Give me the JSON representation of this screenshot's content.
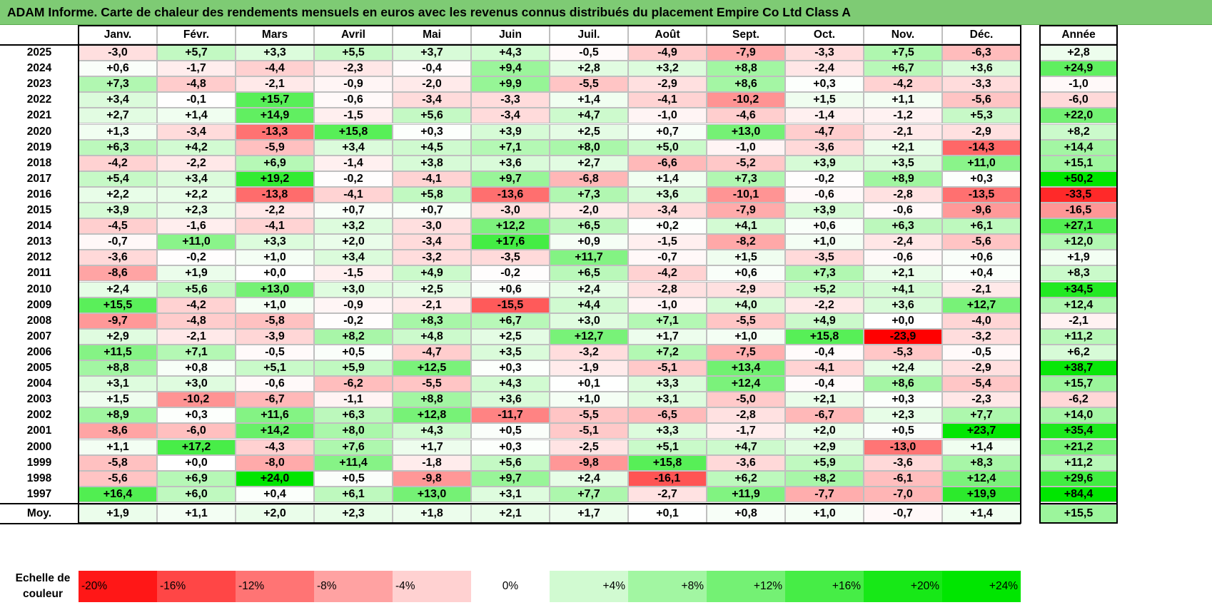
{
  "title": "ADAM Informe. Carte de chaleur des rendements mensuels en euros avec les revenus connus distribués du placement Empire Co Ltd Class A",
  "chart_data": {
    "type": "heatmap",
    "months": [
      "Janv.",
      "Févr.",
      "Mars",
      "Avril",
      "Mai",
      "Juin",
      "Juil.",
      "Août",
      "Sept.",
      "Oct.",
      "Nov.",
      "Déc."
    ],
    "year_header": "Année",
    "average_label": "Moy.",
    "rows": [
      {
        "year": "2025",
        "values": [
          "-3,0",
          "+5,7",
          "+3,3",
          "+5,5",
          "+3,7",
          "+4,3",
          "-0,5",
          "-4,9",
          "-7,9",
          "-3,3",
          "+7,5",
          "-6,3"
        ],
        "annual": "+2,8"
      },
      {
        "year": "2024",
        "values": [
          "+0,6",
          "-1,7",
          "-4,4",
          "-2,3",
          "-0,4",
          "+9,4",
          "+2,8",
          "+3,2",
          "+8,8",
          "-2,4",
          "+6,7",
          "+3,6"
        ],
        "annual": "+24,9"
      },
      {
        "year": "2023",
        "values": [
          "+7,3",
          "-4,8",
          "-2,1",
          "-0,9",
          "-2,0",
          "+9,9",
          "-5,5",
          "-2,9",
          "+8,6",
          "+0,3",
          "-4,2",
          "-3,3"
        ],
        "annual": "-1,0"
      },
      {
        "year": "2022",
        "values": [
          "+3,4",
          "-0,1",
          "+15,7",
          "-0,6",
          "-3,4",
          "-3,3",
          "+1,4",
          "-4,1",
          "-10,2",
          "+1,5",
          "+1,1",
          "-5,6"
        ],
        "annual": "-6,0"
      },
      {
        "year": "2021",
        "values": [
          "+2,7",
          "+1,4",
          "+14,9",
          "-1,5",
          "+5,6",
          "-3,4",
          "+4,7",
          "-1,0",
          "-4,6",
          "-1,4",
          "-1,2",
          "+5,3"
        ],
        "annual": "+22,0"
      },
      {
        "year": "2020",
        "values": [
          "+1,3",
          "-3,4",
          "-13,3",
          "+15,8",
          "+0,3",
          "+3,9",
          "+2,5",
          "+0,7",
          "+13,0",
          "-4,7",
          "-2,1",
          "-2,9"
        ],
        "annual": "+8,2"
      },
      {
        "year": "2019",
        "values": [
          "+6,3",
          "+4,2",
          "-5,9",
          "+3,4",
          "+4,5",
          "+7,1",
          "+8,0",
          "+5,0",
          "-1,0",
          "-3,6",
          "+2,1",
          "-14,3"
        ],
        "annual": "+14,4"
      },
      {
        "year": "2018",
        "values": [
          "-4,2",
          "-2,2",
          "+6,9",
          "-1,4",
          "+3,8",
          "+3,6",
          "+2,7",
          "-6,6",
          "-5,2",
          "+3,9",
          "+3,5",
          "+11,0"
        ],
        "annual": "+15,1"
      },
      {
        "year": "2017",
        "values": [
          "+5,4",
          "+3,4",
          "+19,2",
          "-0,2",
          "-4,1",
          "+9,7",
          "-6,8",
          "+1,4",
          "+7,3",
          "-0,2",
          "+8,9",
          "+0,3"
        ],
        "annual": "+50,2"
      },
      {
        "year": "2016",
        "values": [
          "+2,2",
          "+2,2",
          "-13,8",
          "-4,1",
          "+5,8",
          "-13,6",
          "+7,3",
          "+3,6",
          "-10,1",
          "-0,6",
          "-2,8",
          "-13,5"
        ],
        "annual": "-33,5"
      },
      {
        "year": "2015",
        "values": [
          "+3,9",
          "+2,3",
          "-2,2",
          "+0,7",
          "+0,7",
          "-3,0",
          "-2,0",
          "-3,4",
          "-7,9",
          "+3,9",
          "-0,6",
          "-9,6"
        ],
        "annual": "-16,5"
      },
      {
        "year": "2014",
        "values": [
          "-4,5",
          "-1,6",
          "-4,1",
          "+3,2",
          "-3,0",
          "+12,2",
          "+6,5",
          "+0,2",
          "+4,1",
          "+0,6",
          "+6,3",
          "+6,1"
        ],
        "annual": "+27,1"
      },
      {
        "year": "2013",
        "values": [
          "-0,7",
          "+11,0",
          "+3,3",
          "+2,0",
          "-3,4",
          "+17,6",
          "+0,9",
          "-1,5",
          "-8,2",
          "+1,0",
          "-2,4",
          "-5,6"
        ],
        "annual": "+12,0"
      },
      {
        "year": "2012",
        "values": [
          "-3,6",
          "-0,2",
          "+1,0",
          "+3,4",
          "-3,2",
          "-3,5",
          "+11,7",
          "-0,7",
          "+1,5",
          "-3,5",
          "-0,6",
          "+0,6"
        ],
        "annual": "+1,9"
      },
      {
        "year": "2011",
        "values": [
          "-8,6",
          "+1,9",
          "+0,0",
          "-1,5",
          "+4,9",
          "-0,2",
          "+6,5",
          "-4,2",
          "+0,6",
          "+7,3",
          "+2,1",
          "+0,4"
        ],
        "annual": "+8,3"
      },
      {
        "year": "2010",
        "values": [
          "+2,4",
          "+5,6",
          "+13,0",
          "+3,0",
          "+2,5",
          "+0,6",
          "+2,4",
          "-2,8",
          "-2,9",
          "+5,2",
          "+4,1",
          "-2,1"
        ],
        "annual": "+34,5"
      },
      {
        "year": "2009",
        "values": [
          "+15,5",
          "-4,2",
          "+1,0",
          "-0,9",
          "-2,1",
          "-15,5",
          "+4,4",
          "-1,0",
          "+4,0",
          "-2,2",
          "+3,6",
          "+12,7"
        ],
        "annual": "+12,4"
      },
      {
        "year": "2008",
        "values": [
          "-9,7",
          "-4,8",
          "-5,8",
          "-0,2",
          "+8,3",
          "+6,7",
          "+3,0",
          "+7,1",
          "-5,5",
          "+4,9",
          "+0,0",
          "-4,0"
        ],
        "annual": "-2,1"
      },
      {
        "year": "2007",
        "values": [
          "+2,9",
          "-2,1",
          "-3,9",
          "+8,2",
          "+4,8",
          "+2,5",
          "+12,7",
          "+1,7",
          "+1,0",
          "+15,8",
          "-23,9",
          "-3,2"
        ],
        "annual": "+11,2"
      },
      {
        "year": "2006",
        "values": [
          "+11,5",
          "+7,1",
          "-0,5",
          "+0,5",
          "-4,7",
          "+3,5",
          "-3,2",
          "+7,2",
          "-7,5",
          "-0,4",
          "-5,3",
          "-0,5"
        ],
        "annual": "+6,2"
      },
      {
        "year": "2005",
        "values": [
          "+8,8",
          "+0,8",
          "+5,1",
          "+5,9",
          "+12,5",
          "+0,3",
          "-1,9",
          "-5,1",
          "+13,4",
          "-4,1",
          "+2,4",
          "-2,9"
        ],
        "annual": "+38,7"
      },
      {
        "year": "2004",
        "values": [
          "+3,1",
          "+3,0",
          "-0,6",
          "-6,2",
          "-5,5",
          "+4,3",
          "+0,1",
          "+3,3",
          "+12,4",
          "-0,4",
          "+8,6",
          "-5,4"
        ],
        "annual": "+15,7"
      },
      {
        "year": "2003",
        "values": [
          "+1,5",
          "-10,2",
          "-6,7",
          "-1,1",
          "+8,8",
          "+3,6",
          "+1,0",
          "+3,1",
          "-5,0",
          "+2,1",
          "+0,3",
          "-2,3"
        ],
        "annual": "-6,2"
      },
      {
        "year": "2002",
        "values": [
          "+8,9",
          "+0,3",
          "+11,6",
          "+6,3",
          "+12,8",
          "-11,7",
          "-5,5",
          "-6,5",
          "-2,8",
          "-6,7",
          "+2,3",
          "+7,7"
        ],
        "annual": "+14,0"
      },
      {
        "year": "2001",
        "values": [
          "-8,6",
          "-6,0",
          "+14,2",
          "+8,0",
          "+4,3",
          "+0,5",
          "-5,1",
          "+3,3",
          "-1,7",
          "+2,0",
          "+0,5",
          "+23,7"
        ],
        "annual": "+35,4"
      },
      {
        "year": "2000",
        "values": [
          "+1,1",
          "+17,2",
          "-4,3",
          "+7,6",
          "+1,7",
          "+0,3",
          "-2,5",
          "+5,1",
          "+4,7",
          "+2,9",
          "-13,0",
          "+1,4"
        ],
        "annual": "+21,2"
      },
      {
        "year": "1999",
        "values": [
          "-5,8",
          "+0,0",
          "-8,0",
          "+11,4",
          "-1,8",
          "+5,6",
          "-9,8",
          "+15,8",
          "-3,6",
          "+5,9",
          "-3,6",
          "+8,3"
        ],
        "annual": "+11,2"
      },
      {
        "year": "1998",
        "values": [
          "-5,6",
          "+6,9",
          "+24,0",
          "+0,5",
          "-9,8",
          "+9,7",
          "+2,4",
          "-16,1",
          "+6,2",
          "+8,2",
          "-6,1",
          "+12,4"
        ],
        "annual": "+29,6"
      },
      {
        "year": "1997",
        "values": [
          "+16,4",
          "+6,0",
          "+0,4",
          "+6,1",
          "+13,0",
          "+3,1",
          "+7,7",
          "-2,7",
          "+11,9",
          "-7,7",
          "-7,0",
          "+19,9"
        ],
        "annual": "+84,4"
      }
    ],
    "averages": [
      "+1,9",
      "+1,1",
      "+2,0",
      "+2,3",
      "+1,8",
      "+2,1",
      "+1,7",
      "+0,1",
      "+0,8",
      "+1,0",
      "-0,7",
      "+1,4"
    ],
    "average_annual": "+15,5",
    "scale_label": "Echelle de couleur",
    "scale": [
      "-20%",
      "-16%",
      "-12%",
      "-8%",
      "-4%",
      "0%",
      "+4%",
      "+8%",
      "+12%",
      "+16%",
      "+20%",
      "+24%"
    ],
    "colors": {
      "negative_max": "#ff0000",
      "neutral": "#ffffff",
      "positive_max": "#00e600",
      "title_bg": "#7ecb74"
    }
  }
}
